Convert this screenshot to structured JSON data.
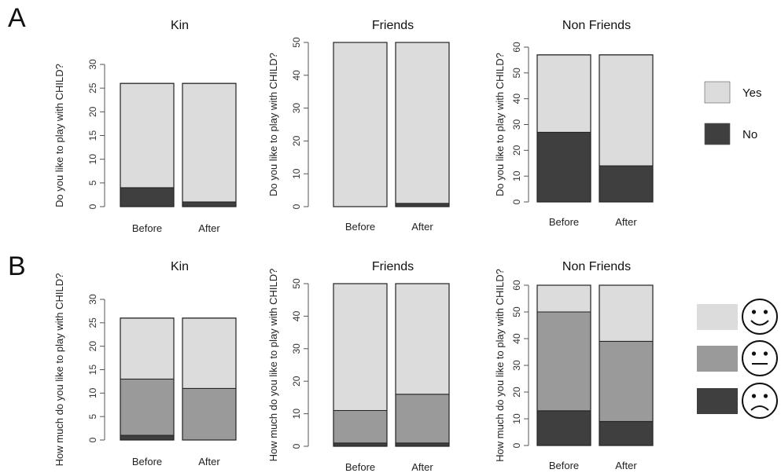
{
  "panels": [
    {
      "letter": "A"
    },
    {
      "letter": "B"
    }
  ],
  "colors": {
    "yes": "#dcdcdc",
    "no": "#3f3f3f",
    "happy": "#dcdcdc",
    "neutral": "#9a9a9a",
    "sad": "#3f3f3f",
    "outline": "#222222",
    "axis": "#555555"
  },
  "legends": {
    "A": [
      {
        "label": "Yes",
        "color": "#dcdcdc"
      },
      {
        "label": "No",
        "color": "#3f3f3f"
      }
    ],
    "B": [
      {
        "icon": "happy-face-icon",
        "color": "#dcdcdc"
      },
      {
        "icon": "neutral-face-icon",
        "color": "#9a9a9a"
      },
      {
        "icon": "sad-face-icon",
        "color": "#3f3f3f"
      }
    ]
  },
  "chart_data": [
    {
      "panel": "A",
      "type": "bar",
      "stacked": true,
      "title": "Kin",
      "ylabel": "Do you like to play with CHILD?",
      "categories": [
        "Before",
        "After"
      ],
      "ylim": [
        0,
        30
      ],
      "yticks": [
        0,
        5,
        10,
        15,
        20,
        25,
        30
      ],
      "series": [
        {
          "name": "No",
          "color": "#3f3f3f",
          "values": [
            4,
            1
          ]
        },
        {
          "name": "Yes",
          "color": "#dcdcdc",
          "values": [
            22,
            25
          ]
        }
      ]
    },
    {
      "panel": "A",
      "type": "bar",
      "stacked": true,
      "title": "Friends",
      "ylabel": "Do you like to play with CHILD?",
      "categories": [
        "Before",
        "After"
      ],
      "ylim": [
        0,
        50
      ],
      "yticks": [
        0,
        10,
        20,
        30,
        40,
        50
      ],
      "series": [
        {
          "name": "No",
          "color": "#3f3f3f",
          "values": [
            0,
            1
          ]
        },
        {
          "name": "Yes",
          "color": "#dcdcdc",
          "values": [
            50,
            49
          ]
        }
      ]
    },
    {
      "panel": "A",
      "type": "bar",
      "stacked": true,
      "title": "Non Friends",
      "ylabel": "Do you like to play with CHILD?",
      "categories": [
        "Before",
        "After"
      ],
      "ylim": [
        0,
        60
      ],
      "yticks": [
        0,
        10,
        20,
        30,
        40,
        50,
        60
      ],
      "series": [
        {
          "name": "No",
          "color": "#3f3f3f",
          "values": [
            27,
            14
          ]
        },
        {
          "name": "Yes",
          "color": "#dcdcdc",
          "values": [
            30,
            43
          ]
        }
      ]
    },
    {
      "panel": "B",
      "type": "bar",
      "stacked": true,
      "title": "Kin",
      "ylabel": "How much do you like to play with CHILD?",
      "categories": [
        "Before",
        "After"
      ],
      "ylim": [
        0,
        30
      ],
      "yticks": [
        0,
        5,
        10,
        15,
        20,
        25,
        30
      ],
      "series": [
        {
          "color": "#3f3f3f",
          "values": [
            1,
            0
          ]
        },
        {
          "color": "#9a9a9a",
          "values": [
            12,
            11
          ]
        },
        {
          "color": "#dcdcdc",
          "values": [
            13,
            15
          ]
        }
      ]
    },
    {
      "panel": "B",
      "type": "bar",
      "stacked": true,
      "title": "Friends",
      "ylabel": "How much do you like to play with CHILD?",
      "categories": [
        "Before",
        "After"
      ],
      "ylim": [
        0,
        50
      ],
      "yticks": [
        0,
        10,
        20,
        30,
        40,
        50
      ],
      "series": [
        {
          "color": "#3f3f3f",
          "values": [
            1,
            1
          ]
        },
        {
          "color": "#9a9a9a",
          "values": [
            10,
            15
          ]
        },
        {
          "color": "#dcdcdc",
          "values": [
            39,
            34
          ]
        }
      ]
    },
    {
      "panel": "B",
      "type": "bar",
      "stacked": true,
      "title": "Non Friends",
      "ylabel": "How much do you like to play with CHILD?",
      "categories": [
        "Before",
        "After"
      ],
      "ylim": [
        0,
        60
      ],
      "yticks": [
        0,
        10,
        20,
        30,
        40,
        50,
        60
      ],
      "series": [
        {
          "color": "#3f3f3f",
          "values": [
            13,
            9
          ]
        },
        {
          "color": "#9a9a9a",
          "values": [
            37,
            30
          ]
        },
        {
          "color": "#dcdcdc",
          "values": [
            10,
            21
          ]
        }
      ]
    }
  ]
}
